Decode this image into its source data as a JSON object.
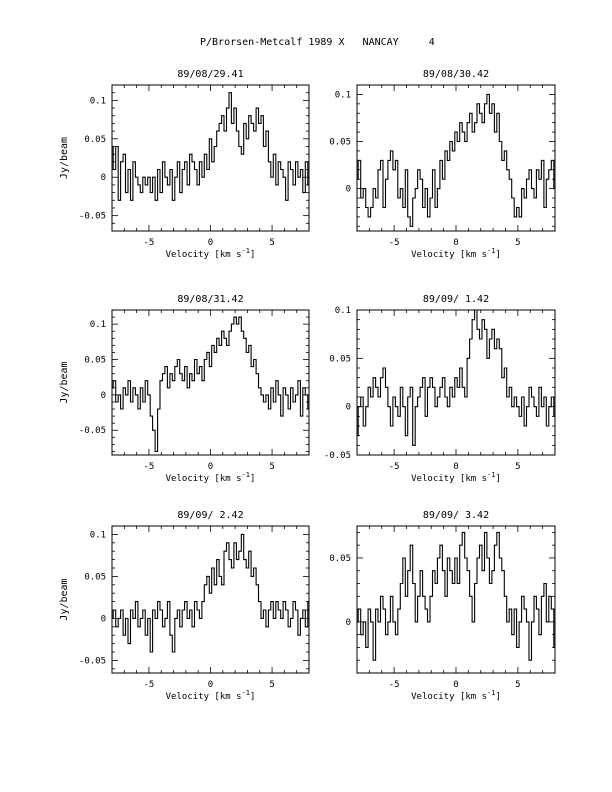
{
  "page_title": "P/Brorsen-Metcalf 1989 X   NANCAY     4",
  "chart_data": [
    {
      "type": "line",
      "title": "89/08/29.41",
      "xlabel": "Velocity [km s^-1]",
      "ylabel": "Jy/beam",
      "xlim": [
        -8,
        8
      ],
      "ylim": [
        -0.07,
        0.12
      ],
      "xticks": [
        -5,
        0,
        5
      ],
      "yticks": [
        -0.05,
        0,
        0.05,
        0.1
      ],
      "ytick_labels": [
        "-0.05",
        "0",
        "0.05",
        "0.1"
      ],
      "step": true,
      "x_start": -8,
      "x_step": 0.2,
      "values": [
        0.04,
        0.01,
        0.04,
        -0.03,
        0.02,
        0.03,
        -0.02,
        0.01,
        -0.03,
        0.02,
        0.0,
        -0.01,
        -0.02,
        0.0,
        -0.01,
        0.0,
        -0.02,
        0.0,
        -0.03,
        0.01,
        -0.02,
        0.02,
        0.0,
        -0.01,
        0.01,
        -0.03,
        0.0,
        0.02,
        -0.02,
        0.01,
        0.02,
        -0.01,
        0.03,
        0.02,
        0.01,
        -0.01,
        0.02,
        0.0,
        0.03,
        0.01,
        0.05,
        0.02,
        0.04,
        0.06,
        0.07,
        0.08,
        0.06,
        0.09,
        0.11,
        0.07,
        0.09,
        0.06,
        0.04,
        0.03,
        0.07,
        0.05,
        0.08,
        0.07,
        0.06,
        0.09,
        0.07,
        0.08,
        0.04,
        0.06,
        0.02,
        0.0,
        0.03,
        -0.01,
        0.02,
        0.01,
        0.0,
        -0.03,
        0.02,
        0.01,
        -0.01,
        0.02,
        0.0,
        0.01,
        -0.02,
        0.02,
        -0.01,
        0.0,
        0.02,
        0.01,
        0.03,
        -0.02,
        0.01,
        0.0,
        -0.03,
        0.02,
        -0.01,
        0.01,
        0.03,
        0.02,
        0.0,
        -0.02,
        0.02,
        -0.03,
        0.01,
        0.02,
        -0.01,
        0.03,
        0.0,
        0.02,
        -0.01,
        -0.03,
        0.0,
        0.02,
        -0.02,
        0.01,
        -0.01,
        0.0,
        0.02,
        0.01,
        -0.02,
        0.0,
        0.01,
        0.02,
        -0.01,
        -0.04,
        0.01
      ]
    },
    {
      "type": "line",
      "title": "89/08/30.42",
      "xlabel": "Velocity [km s^-1]",
      "ylabel": "",
      "xlim": [
        -8,
        8
      ],
      "ylim": [
        -0.045,
        0.11
      ],
      "xticks": [
        -5,
        0,
        5
      ],
      "yticks": [
        0,
        0.05,
        0.1
      ],
      "ytick_labels": [
        "0",
        "0.05",
        "0.1"
      ],
      "step": true,
      "x_start": -8,
      "x_step": 0.2,
      "values": [
        0.01,
        0.03,
        -0.01,
        0.0,
        -0.02,
        -0.03,
        -0.02,
        0.0,
        -0.01,
        0.02,
        0.03,
        -0.02,
        0.01,
        0.03,
        0.04,
        0.02,
        0.03,
        -0.01,
        0.0,
        -0.02,
        0.02,
        -0.03,
        -0.04,
        -0.01,
        0.0,
        0.02,
        0.01,
        -0.02,
        0.0,
        -0.03,
        -0.01,
        0.02,
        -0.02,
        0.0,
        0.03,
        0.01,
        0.04,
        0.03,
        0.05,
        0.04,
        0.06,
        0.05,
        0.07,
        0.06,
        0.05,
        0.07,
        0.08,
        0.06,
        0.07,
        0.09,
        0.08,
        0.07,
        0.09,
        0.1,
        0.08,
        0.09,
        0.06,
        0.08,
        0.05,
        0.03,
        0.04,
        0.02,
        0.01,
        -0.01,
        -0.03,
        -0.02,
        -0.03,
        0.0,
        -0.01,
        0.01,
        0.02,
        0.0,
        -0.01,
        0.02,
        0.01,
        0.03,
        -0.02,
        0.01,
        0.02,
        0.03,
        0.0,
        0.02,
        0.01,
        0.02,
        -0.01,
        0.01,
        0.02,
        0.0,
        0.01,
        0.03,
        0.02,
        0.0,
        -0.02,
        0.01,
        0.02,
        0.03,
        0.0,
        0.01,
        0.02,
        -0.01,
        0.0,
        0.02,
        0.01,
        0.03,
        0.02,
        0.01,
        0.0,
        0.02,
        -0.01,
        0.01,
        0.03,
        0.0,
        0.02,
        0.01,
        -0.01,
        0.0,
        0.02,
        0.01,
        -0.02,
        0.0,
        -0.01
      ]
    },
    {
      "type": "line",
      "title": "89/08/31.42",
      "xlabel": "Velocity [km s^-1]",
      "ylabel": "Jy/beam",
      "xlim": [
        -8,
        8
      ],
      "ylim": [
        -0.085,
        0.12
      ],
      "xticks": [
        -5,
        0,
        5
      ],
      "yticks": [
        -0.05,
        0,
        0.05,
        0.1
      ],
      "ytick_labels": [
        "-0.05",
        "0",
        "0.05",
        "0.1"
      ],
      "step": true,
      "x_start": -8,
      "x_step": 0.2,
      "values": [
        0.01,
        0.02,
        -0.01,
        0.0,
        -0.02,
        0.01,
        0.0,
        0.02,
        -0.01,
        0.01,
        0.0,
        -0.02,
        0.01,
        -0.01,
        0.02,
        0.0,
        -0.03,
        -0.05,
        -0.08,
        -0.02,
        0.02,
        0.03,
        0.04,
        0.01,
        0.03,
        0.02,
        0.04,
        0.05,
        0.03,
        0.02,
        0.04,
        0.01,
        0.03,
        0.02,
        0.05,
        0.03,
        0.04,
        0.02,
        0.05,
        0.06,
        0.04,
        0.07,
        0.06,
        0.08,
        0.07,
        0.09,
        0.08,
        0.07,
        0.09,
        0.1,
        0.11,
        0.1,
        0.11,
        0.09,
        0.08,
        0.06,
        0.07,
        0.04,
        0.05,
        0.03,
        0.01,
        0.0,
        -0.01,
        0.0,
        -0.02,
        0.01,
        -0.01,
        0.02,
        0.0,
        -0.03,
        0.01,
        0.0,
        -0.02,
        0.01,
        -0.01,
        0.0,
        0.02,
        -0.03,
        0.01,
        0.0,
        -0.02,
        0.0,
        0.01,
        0.02,
        -0.01,
        0.0,
        0.01,
        -0.03,
        0.0,
        0.02,
        0.01,
        -0.01,
        0.03,
        0.0,
        0.02,
        -0.01,
        0.01,
        0.02,
        0.0,
        -0.02,
        0.01,
        0.0,
        0.02,
        -0.01,
        0.01,
        0.03,
        0.0,
        -0.01,
        0.02,
        0.0,
        0.04,
        0.01,
        0.02,
        0.05,
        0.0,
        -0.02,
        0.02,
        0.01,
        -0.01,
        0.04,
        0.06
      ]
    },
    {
      "type": "line",
      "title": "89/09/ 1.42",
      "xlabel": "Velocity [km s^-1]",
      "ylabel": "",
      "xlim": [
        -8,
        8
      ],
      "ylim": [
        -0.05,
        0.1
      ],
      "xticks": [
        -5,
        0,
        5
      ],
      "yticks": [
        -0.05,
        0,
        0.05,
        0.1
      ],
      "ytick_labels": [
        "-0.05",
        "0",
        "0.05",
        "0.1"
      ],
      "step": true,
      "x_start": -8,
      "x_step": 0.2,
      "values": [
        -0.03,
        0.0,
        0.01,
        -0.02,
        0.0,
        0.02,
        0.01,
        0.03,
        0.02,
        0.01,
        0.03,
        0.04,
        0.02,
        0.0,
        -0.02,
        0.01,
        0.0,
        -0.01,
        0.02,
        0.0,
        -0.03,
        0.01,
        0.02,
        -0.04,
        0.0,
        0.01,
        0.02,
        0.03,
        -0.01,
        0.02,
        0.03,
        0.02,
        0.0,
        0.01,
        0.02,
        0.03,
        0.01,
        0.0,
        0.02,
        0.01,
        0.03,
        0.02,
        0.04,
        0.02,
        0.01,
        0.05,
        0.07,
        0.09,
        0.1,
        0.08,
        0.07,
        0.09,
        0.08,
        0.05,
        0.07,
        0.08,
        0.06,
        0.07,
        0.06,
        0.03,
        0.04,
        0.01,
        0.02,
        0.0,
        0.01,
        0.0,
        -0.01,
        0.01,
        -0.02,
        0.0,
        0.02,
        0.01,
        0.0,
        -0.01,
        0.02,
        0.0,
        0.01,
        -0.02,
        0.0,
        0.01,
        -0.01,
        0.02,
        0.0,
        -0.01,
        0.01,
        0.0,
        -0.02,
        0.01,
        0.0,
        0.02,
        -0.01,
        0.0,
        0.01,
        0.02,
        0.0,
        -0.02,
        0.0,
        0.01,
        -0.01,
        0.0,
        0.02,
        0.01,
        0.0,
        -0.02,
        0.01,
        -0.03,
        0.0,
        -0.01,
        0.02,
        0.0,
        0.01,
        -0.02,
        0.0,
        0.02,
        0.01,
        -0.01,
        0.02,
        0.03,
        0.04,
        0.02,
        0.0
      ]
    },
    {
      "type": "line",
      "title": "89/09/ 2.42",
      "xlabel": "Velocity [km s^-1]",
      "ylabel": "Jy/beam",
      "xlim": [
        -8,
        8
      ],
      "ylim": [
        -0.065,
        0.11
      ],
      "xticks": [
        -5,
        0,
        5
      ],
      "yticks": [
        -0.05,
        0,
        0.05,
        0.1
      ],
      "ytick_labels": [
        "-0.05",
        "0",
        "0.05",
        "0.1"
      ],
      "step": true,
      "x_start": -8,
      "x_step": 0.2,
      "values": [
        0.0,
        0.01,
        -0.01,
        0.0,
        0.01,
        -0.02,
        0.0,
        -0.03,
        0.01,
        0.0,
        0.02,
        -0.01,
        0.0,
        0.01,
        -0.02,
        0.0,
        -0.04,
        0.01,
        0.0,
        0.02,
        0.01,
        -0.01,
        0.0,
        0.02,
        -0.02,
        -0.04,
        0.0,
        0.01,
        -0.01,
        0.01,
        0.02,
        0.0,
        0.01,
        -0.01,
        0.02,
        0.01,
        0.0,
        0.02,
        0.04,
        0.05,
        0.03,
        0.06,
        0.04,
        0.07,
        0.05,
        0.04,
        0.08,
        0.09,
        0.07,
        0.06,
        0.09,
        0.07,
        0.08,
        0.1,
        0.07,
        0.06,
        0.08,
        0.05,
        0.06,
        0.04,
        0.02,
        0.0,
        0.01,
        -0.01,
        0.01,
        0.02,
        0.0,
        0.02,
        0.01,
        0.0,
        0.02,
        0.01,
        -0.01,
        0.0,
        0.02,
        0.01,
        -0.02,
        0.0,
        0.01,
        -0.01,
        0.02,
        0.0,
        0.01,
        0.02,
        -0.01,
        0.0,
        0.01,
        0.0,
        -0.02,
        0.01,
        0.0,
        0.02,
        -0.01,
        0.0,
        0.01,
        -0.01,
        0.02,
        0.0,
        0.01,
        -0.02,
        0.0,
        0.01,
        0.02,
        -0.01,
        0.0,
        0.02,
        0.01,
        0.0,
        -0.01,
        0.01,
        0.0,
        0.02,
        -0.01,
        0.0,
        0.01,
        -0.01,
        0.0,
        0.01,
        -0.02,
        -0.01
      ]
    },
    {
      "type": "line",
      "title": "89/09/ 3.42",
      "xlabel": "Velocity [km s^-1]",
      "ylabel": "",
      "xlim": [
        -8,
        8
      ],
      "ylim": [
        -0.04,
        0.075
      ],
      "xticks": [
        -5,
        0,
        5
      ],
      "yticks": [
        0,
        0.05
      ],
      "ytick_labels": [
        "0",
        "0.05"
      ],
      "step": true,
      "x_start": -8,
      "x_step": 0.2,
      "values": [
        0.0,
        0.01,
        -0.01,
        0.0,
        -0.02,
        0.01,
        0.0,
        -0.03,
        0.01,
        0.0,
        0.02,
        0.01,
        -0.01,
        0.0,
        0.02,
        0.0,
        -0.01,
        0.01,
        0.03,
        0.05,
        0.02,
        0.04,
        0.06,
        0.03,
        0.0,
        0.02,
        0.04,
        0.02,
        0.01,
        0.0,
        0.02,
        0.04,
        0.03,
        0.05,
        0.06,
        0.04,
        0.02,
        0.05,
        0.04,
        0.03,
        0.05,
        0.03,
        0.06,
        0.07,
        0.05,
        0.04,
        0.02,
        0.0,
        0.03,
        0.05,
        0.06,
        0.04,
        0.07,
        0.05,
        0.03,
        0.04,
        0.06,
        0.07,
        0.05,
        0.04,
        0.02,
        0.0,
        0.01,
        -0.01,
        0.01,
        -0.02,
        0.0,
        0.02,
        0.01,
        0.0,
        -0.03,
        0.0,
        0.02,
        0.01,
        -0.01,
        0.02,
        0.03,
        0.0,
        0.02,
        0.01,
        -0.02,
        0.0,
        0.01,
        0.03,
        0.04,
        0.02,
        0.0,
        0.01,
        0.02,
        -0.01,
        0.0,
        0.02,
        0.03,
        0.01,
        0.0,
        -0.01,
        0.02,
        0.01,
        0.0,
        0.02,
        -0.01,
        0.0,
        0.01,
        -0.02,
        0.0,
        0.01,
        0.02,
        -0.01,
        0.0,
        0.02,
        0.01,
        -0.02,
        0.0,
        0.01,
        -0.03,
        0.0,
        0.02,
        -0.01,
        0.0,
        0.01,
        0.02,
        0.04
      ]
    }
  ]
}
